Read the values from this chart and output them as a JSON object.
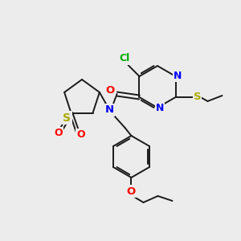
{
  "bg_color": "#ececec",
  "bond_color": "#1a1a1a",
  "bond_width": 1.4,
  "atom_colors": {
    "N": "#0000ff",
    "O": "#ff0000",
    "S": "#aaaa00",
    "Cl": "#00aa00",
    "C": "#1a1a1a"
  },
  "font_size": 8.5
}
